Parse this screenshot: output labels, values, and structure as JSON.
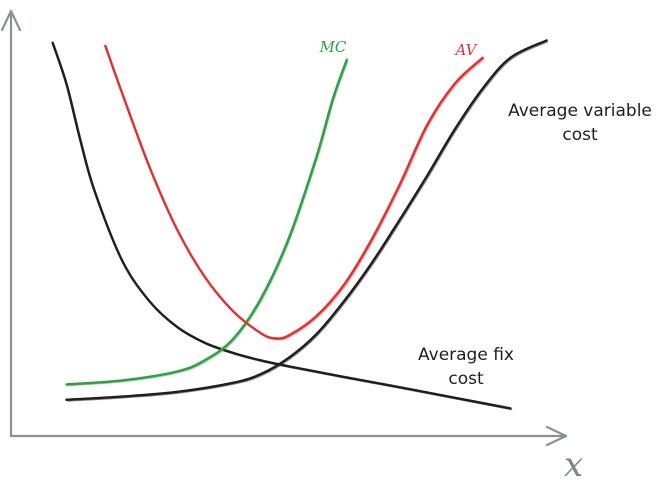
{
  "chart_data": {
    "type": "line",
    "title": "",
    "xlabel": "x",
    "ylabel": "",
    "xlim": [
      0,
      10
    ],
    "ylim": [
      0,
      10
    ],
    "grid": false,
    "legend": "none",
    "series": [
      {
        "name": "Average variable cost",
        "color": "#1e1e1e",
        "label_lines": [
          "Average variable",
          "cost"
        ],
        "x": [
          1.0,
          2.0,
          3.0,
          4.0,
          4.5,
          5.0,
          5.5,
          6.0,
          6.5,
          7.0,
          7.5,
          8.0,
          8.5,
          9.0,
          9.65
        ],
        "y": [
          0.92,
          1.0,
          1.12,
          1.35,
          1.57,
          1.98,
          2.58,
          3.42,
          4.39,
          5.48,
          6.61,
          7.79,
          8.82,
          9.6,
          10.04
        ]
      },
      {
        "name": "Average fix cost",
        "color": "#1e1e1e",
        "label_lines": [
          "Average fix",
          "cost"
        ],
        "x": [
          0.75,
          1.0,
          1.25,
          1.5,
          2.0,
          2.5,
          3.0,
          3.5,
          4.0,
          4.5,
          5.0,
          6.0,
          7.0,
          8.0,
          9.0
        ],
        "y": [
          9.98,
          8.93,
          7.5,
          6.24,
          4.46,
          3.41,
          2.76,
          2.36,
          2.11,
          1.92,
          1.77,
          1.5,
          1.24,
          0.97,
          0.7
        ]
      },
      {
        "name": "MC",
        "color": "#2f9e44",
        "x": [
          1.0,
          2.0,
          3.0,
          3.5,
          4.0,
          4.5,
          5.0,
          5.5,
          5.8,
          6.05
        ],
        "y": [
          1.31,
          1.41,
          1.64,
          1.93,
          2.46,
          3.48,
          5.0,
          7.07,
          8.56,
          9.55
        ]
      },
      {
        "name": "AV",
        "color": "#e03131",
        "x": [
          1.7,
          2.0,
          2.5,
          3.0,
          3.5,
          4.0,
          4.5,
          4.75,
          5.0,
          5.5,
          6.0,
          6.5,
          7.0,
          7.5,
          8.0,
          8.5
        ],
        "y": [
          9.9,
          8.71,
          6.81,
          5.22,
          4.02,
          3.17,
          2.61,
          2.48,
          2.55,
          3.04,
          3.84,
          4.99,
          6.37,
          7.9,
          8.95,
          9.6
        ]
      }
    ]
  }
}
